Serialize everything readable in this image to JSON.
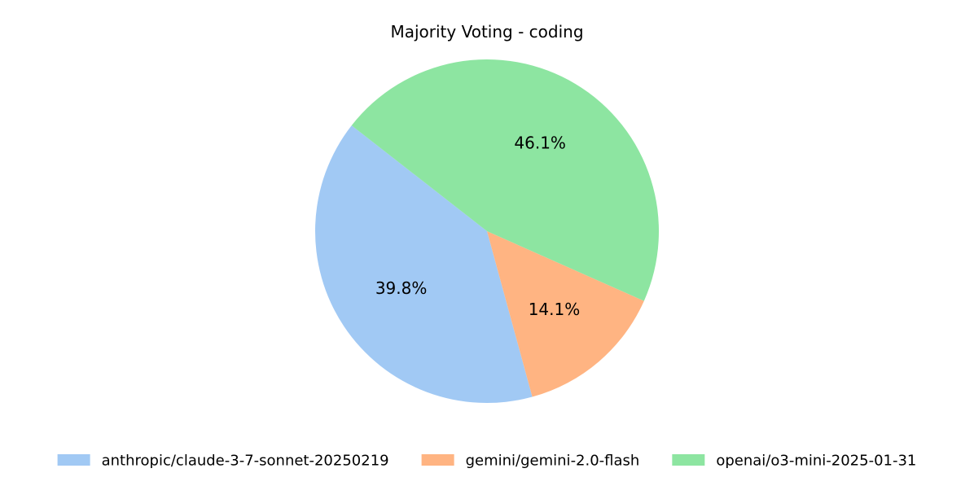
{
  "chart_data": {
    "type": "pie",
    "title": "Majority Voting - coding",
    "slices": [
      {
        "name": "anthropic/claude-3-7-sonnet-20250219",
        "value": 39.8,
        "label": "39.8%",
        "color": "#a1c9f4"
      },
      {
        "name": "gemini/gemini-2.0-flash",
        "value": 14.1,
        "label": "14.1%",
        "color": "#ffb482"
      },
      {
        "name": "openai/o3-mini-2025-01-31",
        "value": 46.1,
        "label": "46.1%",
        "color": "#8de5a1"
      }
    ],
    "legend_position": "bottom-center"
  }
}
